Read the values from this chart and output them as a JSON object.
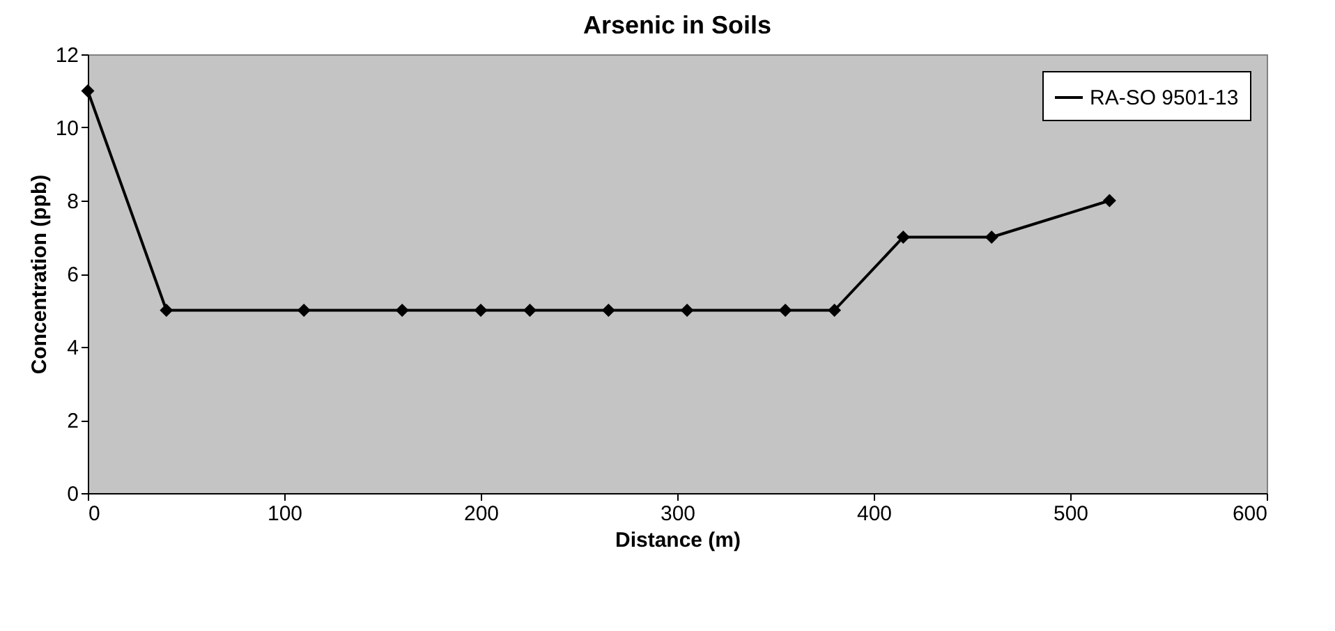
{
  "chart_data": {
    "type": "line",
    "title": "Arsenic in Soils",
    "xlabel": "Distance (m)",
    "ylabel": "Concentration (ppb)",
    "x": [
      0,
      40,
      110,
      160,
      200,
      225,
      265,
      305,
      355,
      380,
      415,
      460,
      520
    ],
    "series": [
      {
        "name": "RA-SO 9501-13",
        "color": "#000000",
        "values": [
          11,
          5,
          5,
          5,
          5,
          5,
          5,
          5,
          5,
          5,
          7,
          7,
          8
        ]
      }
    ],
    "xlim": [
      0,
      600
    ],
    "xticks": [
      0,
      100,
      200,
      300,
      400,
      500,
      600
    ],
    "ylim": [
      0,
      12
    ],
    "yticks": [
      0,
      2,
      4,
      6,
      8,
      10,
      12
    ],
    "grid": false,
    "legend": "top right",
    "marker": "diamond",
    "line_style": "solid"
  }
}
